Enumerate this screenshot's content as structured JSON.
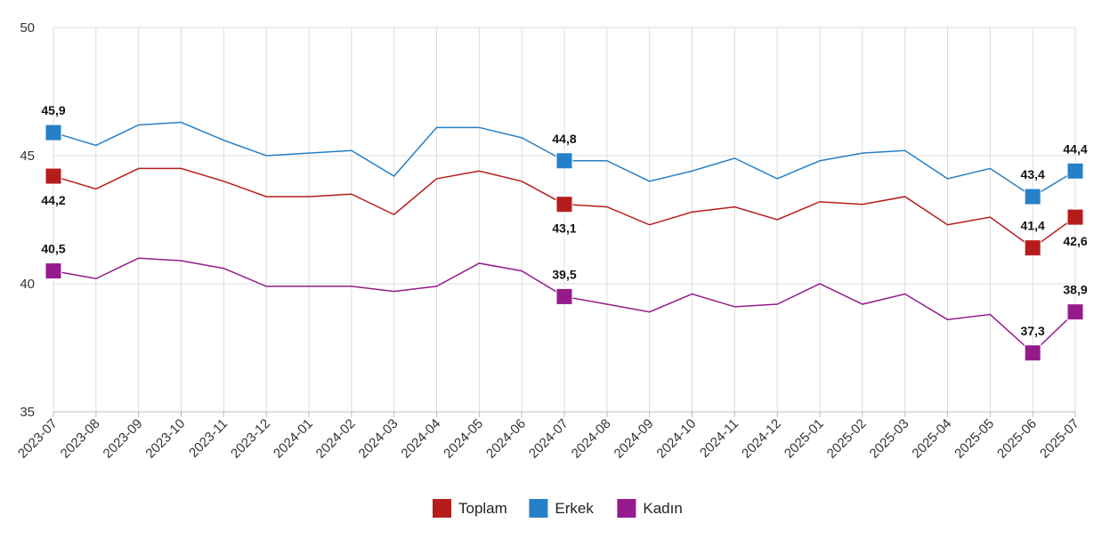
{
  "chart_data": {
    "type": "line",
    "title": "",
    "xlabel": "",
    "ylabel": "",
    "ylim": [
      35,
      50
    ],
    "yticks": [
      35,
      40,
      45,
      50
    ],
    "grid": true,
    "legend_position": "bottom-center",
    "categories": [
      "2023-07",
      "2023-08",
      "2023-09",
      "2023-10",
      "2023-11",
      "2023-12",
      "2024-01",
      "2024-02",
      "2024-03",
      "2024-04",
      "2024-05",
      "2024-06",
      "2024-07",
      "2024-08",
      "2024-09",
      "2024-10",
      "2024-11",
      "2024-12",
      "2025-01",
      "2025-02",
      "2025-03",
      "2025-04",
      "2025-05",
      "2025-06",
      "2025-07"
    ],
    "series": [
      {
        "name": "Toplam",
        "color": "#b71c1c",
        "values": [
          44.2,
          43.7,
          44.5,
          44.5,
          44.0,
          43.4,
          43.4,
          43.5,
          42.7,
          44.1,
          44.4,
          44.0,
          43.1,
          43.0,
          42.3,
          42.8,
          43.0,
          42.5,
          43.2,
          43.1,
          43.4,
          42.3,
          42.6,
          41.4,
          42.6
        ],
        "labels": [
          {
            "index": 0,
            "text": "44,2",
            "pos": "below"
          },
          {
            "index": 12,
            "text": "43,1",
            "pos": "below"
          },
          {
            "index": 23,
            "text": "41,4",
            "pos": "above"
          },
          {
            "index": 24,
            "text": "42,6",
            "pos": "below"
          }
        ]
      },
      {
        "name": "Erkek",
        "color": "#2680c7",
        "values": [
          45.9,
          45.4,
          46.2,
          46.3,
          45.6,
          45.0,
          45.1,
          45.2,
          44.2,
          46.1,
          46.1,
          45.7,
          44.8,
          44.8,
          44.0,
          44.4,
          44.9,
          44.1,
          44.8,
          45.1,
          45.2,
          44.1,
          44.5,
          43.4,
          44.4
        ],
        "labels": [
          {
            "index": 0,
            "text": "45,9",
            "pos": "above"
          },
          {
            "index": 12,
            "text": "44,8",
            "pos": "above"
          },
          {
            "index": 23,
            "text": "43,4",
            "pos": "above"
          },
          {
            "index": 24,
            "text": "44,4",
            "pos": "above"
          }
        ]
      },
      {
        "name": "Kadın",
        "color": "#951b8c",
        "values": [
          40.5,
          40.2,
          41.0,
          40.9,
          40.6,
          39.9,
          39.9,
          39.9,
          39.7,
          39.9,
          40.8,
          40.5,
          39.5,
          39.2,
          38.9,
          39.6,
          39.1,
          39.2,
          40.0,
          39.2,
          39.6,
          38.6,
          38.8,
          37.3,
          38.9
        ],
        "labels": [
          {
            "index": 0,
            "text": "40,5",
            "pos": "above"
          },
          {
            "index": 12,
            "text": "39,5",
            "pos": "above"
          },
          {
            "index": 23,
            "text": "37,3",
            "pos": "above"
          },
          {
            "index": 24,
            "text": "38,9",
            "pos": "above"
          }
        ]
      }
    ]
  }
}
